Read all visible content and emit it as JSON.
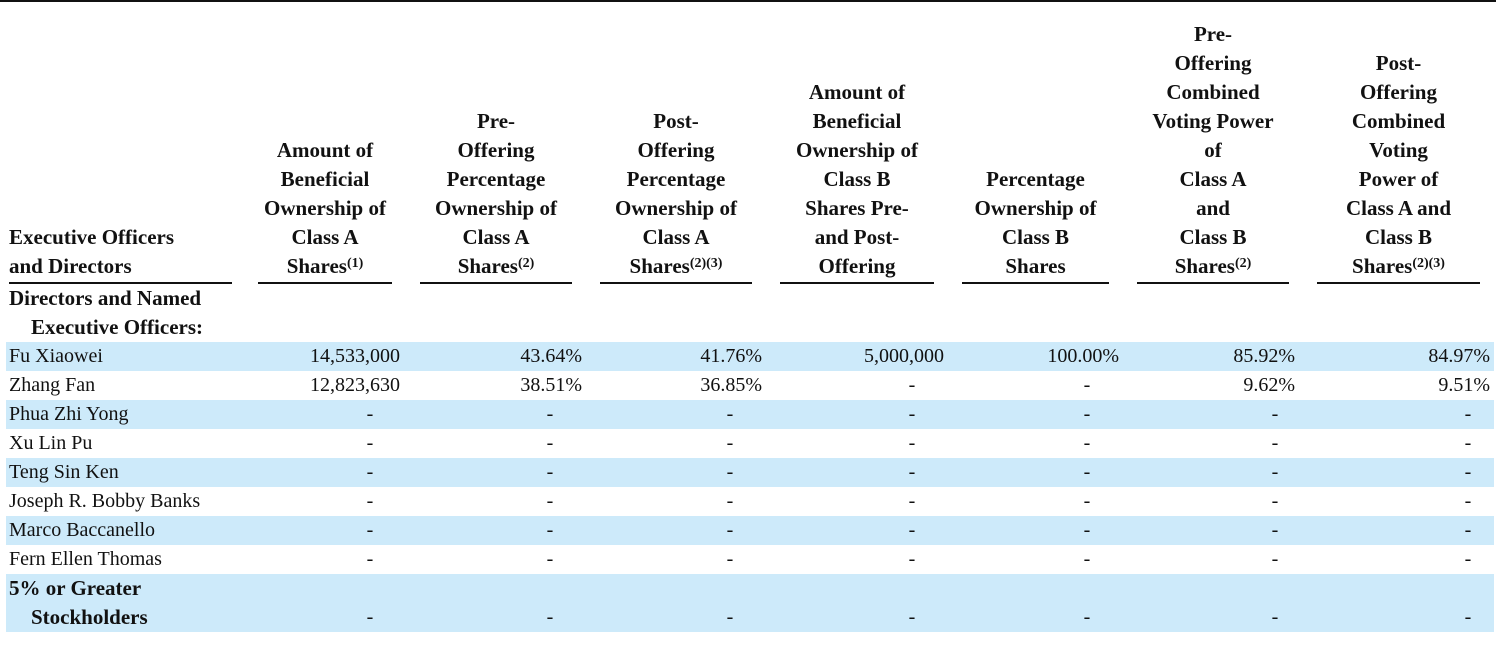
{
  "headers": {
    "col0": "Executive Officers and Directors",
    "col1": "Amount of Beneficial Ownership of Class A Shares",
    "col1_sup": "(1)",
    "col2": "Pre-Offering Percentage Ownership of Class A Shares",
    "col2_sup": "(2)",
    "col3": "Post-Offering Percentage Ownership of Class A Shares",
    "col3_sup": "(2)(3)",
    "col4": "Amount of Beneficial Ownership of Class B Shares Pre-and Post-Offering",
    "col5": "Percentage Ownership of Class B Shares",
    "col6": "Pre-Offering Combined Voting Power of Class A and Class B Shares",
    "col6_sup": "(2)",
    "col7": "Post-Offering Combined Voting Power of Class A and Class B Shares",
    "col7_sup": "(2)(3)"
  },
  "header_lines": {
    "col0": [
      "Executive Officers",
      "and Directors"
    ],
    "col1": [
      "Amount of",
      "Beneficial",
      "Ownership of",
      "Class A",
      "Shares"
    ],
    "col2": [
      "Pre-",
      "Offering",
      "Percentage",
      "Ownership of",
      "Class A",
      "Shares"
    ],
    "col3": [
      "Post-",
      "Offering",
      "Percentage",
      "Ownership of",
      "Class A",
      "Shares"
    ],
    "col4": [
      "Amount of",
      "Beneficial",
      "Ownership of",
      "Class B",
      "Shares Pre-",
      "and Post-",
      "Offering"
    ],
    "col5": [
      "Percentage",
      "Ownership of",
      "Class B",
      "Shares"
    ],
    "col6": [
      "Pre-",
      "Offering",
      "Combined",
      "Voting Power",
      "of",
      "Class A",
      "and",
      "Class B",
      "Shares"
    ],
    "col7": [
      "Post-",
      "Offering",
      "Combined",
      "Voting",
      "Power of",
      "Class A and",
      "Class B",
      "Shares"
    ]
  },
  "section1": {
    "line1": "Directors and Named",
    "line2": "Executive Officers:"
  },
  "rows": [
    {
      "name": "Fu Xiaowei",
      "v1": "14,533,000",
      "v2": "43.64%",
      "v3": "41.76%",
      "v4": "5,000,000",
      "v5": "100.00%",
      "v6": "85.92%",
      "v7": "84.97%"
    },
    {
      "name": "Zhang Fan",
      "v1": "12,823,630",
      "v2": "38.51%",
      "v3": "36.85%",
      "v4": "-",
      "v5": "-",
      "v6": "9.62%",
      "v7": "9.51%"
    },
    {
      "name": "Phua Zhi Yong",
      "v1": "-",
      "v2": "-",
      "v3": "-",
      "v4": "-",
      "v5": "-",
      "v6": "-",
      "v7": "-"
    },
    {
      "name": "Xu Lin Pu",
      "v1": "-",
      "v2": "-",
      "v3": "-",
      "v4": "-",
      "v5": "-",
      "v6": "-",
      "v7": "-"
    },
    {
      "name": "Teng Sin Ken",
      "v1": "-",
      "v2": "-",
      "v3": "-",
      "v4": "-",
      "v5": "-",
      "v6": "-",
      "v7": "-"
    },
    {
      "name": "Joseph R. Bobby Banks",
      "v1": "-",
      "v2": "-",
      "v3": "-",
      "v4": "-",
      "v5": "-",
      "v6": "-",
      "v7": "-"
    },
    {
      "name": "Marco Baccanello",
      "v1": "-",
      "v2": "-",
      "v3": "-",
      "v4": "-",
      "v5": "-",
      "v6": "-",
      "v7": "-"
    },
    {
      "name": "Fern Ellen Thomas",
      "v1": "-",
      "v2": "-",
      "v3": "-",
      "v4": "-",
      "v5": "-",
      "v6": "-",
      "v7": "-"
    }
  ],
  "section2": {
    "line1": "5% or Greater",
    "line2": "Stockholders",
    "v1": "-",
    "v2": "-",
    "v3": "-",
    "v4": "-",
    "v5": "-",
    "v6": "-",
    "v7": "-"
  },
  "colors": {
    "row_shade": "#cdeafa",
    "text": "#111111",
    "rule": "#111111"
  }
}
